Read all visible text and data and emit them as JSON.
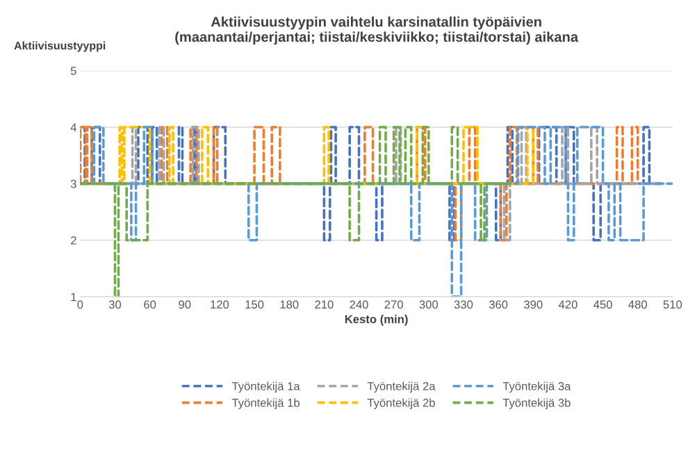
{
  "chart_data": {
    "type": "line",
    "title": "Aktiivisuustyypin vaihtelu karsinatallin työpäivien\n(maanantai/perjantai; tiistai/keskiviikko; tiistai/torstai) aikana",
    "xlabel": "Kesto (min)",
    "ylabel": "Aktiivisuustyyppi",
    "xlim": [
      0,
      510
    ],
    "xticks": [
      0,
      30,
      60,
      90,
      120,
      150,
      180,
      210,
      240,
      270,
      300,
      330,
      360,
      390,
      420,
      450,
      480,
      510
    ],
    "ylim": [
      1,
      5
    ],
    "yticks": [
      1,
      2,
      3,
      4,
      5
    ],
    "grid": "y",
    "legend": "bottom",
    "line_style": "dashed",
    "marker": "none",
    "series": [
      {
        "name": "Työntekijä 1a",
        "color": "#4472c4",
        "x": [
          0,
          0,
          4,
          4,
          10,
          10,
          17,
          17,
          50,
          50,
          58,
          58,
          62,
          62,
          66,
          66,
          85,
          85,
          88,
          88,
          98,
          98,
          100,
          100,
          115,
          115,
          125,
          125,
          210,
          210,
          215,
          215,
          216,
          216,
          220,
          220,
          232,
          232,
          240,
          240,
          255,
          255,
          260,
          260,
          318,
          318,
          322,
          322,
          358,
          358,
          362,
          362,
          368,
          368,
          372,
          372,
          395,
          395,
          410,
          410,
          418,
          418,
          425,
          425,
          442,
          442,
          448,
          448,
          485,
          485,
          490,
          490,
          500
        ],
        "values": [
          3,
          4,
          4,
          3,
          3,
          4,
          4,
          3,
          3,
          4,
          4,
          3,
          3,
          4,
          4,
          3,
          3,
          4,
          4,
          3,
          3,
          4,
          4,
          3,
          3,
          4,
          4,
          3,
          3,
          2,
          2,
          3,
          3,
          4,
          4,
          3,
          3,
          4,
          4,
          3,
          3,
          2,
          2,
          3,
          3,
          2,
          2,
          3,
          3,
          2,
          2,
          3,
          3,
          4,
          4,
          3,
          3,
          4,
          4,
          3,
          3,
          4,
          4,
          3,
          3,
          2,
          2,
          3,
          3,
          4,
          4,
          3,
          3
        ]
      },
      {
        "name": "Työntekijä 1b",
        "color": "#ed7d31",
        "x": [
          0,
          0,
          5,
          5,
          6,
          6,
          10,
          10,
          70,
          70,
          75,
          75,
          95,
          95,
          100,
          100,
          115,
          115,
          118,
          118,
          150,
          150,
          158,
          158,
          165,
          165,
          172,
          172,
          245,
          245,
          252,
          252,
          290,
          290,
          297,
          297,
          323,
          323,
          328,
          328,
          335,
          335,
          340,
          340,
          362,
          362,
          367,
          367,
          370,
          370,
          376,
          376,
          390,
          390,
          394,
          394,
          462,
          462,
          467,
          467,
          475,
          475,
          480,
          480
        ],
        "values": [
          3,
          4,
          4,
          3,
          3,
          4,
          4,
          3,
          3,
          4,
          4,
          3,
          3,
          4,
          4,
          3,
          3,
          4,
          4,
          3,
          3,
          4,
          4,
          3,
          3,
          4,
          4,
          3,
          3,
          4,
          4,
          3,
          3,
          4,
          4,
          3,
          3,
          2,
          2,
          3,
          3,
          4,
          4,
          3,
          3,
          2,
          2,
          3,
          3,
          4,
          4,
          3,
          3,
          4,
          4,
          3,
          3,
          4,
          4,
          3,
          3,
          4,
          4,
          3
        ]
      },
      {
        "name": "Työntekijä 2a",
        "color": "#a5a5a5",
        "x": [
          0,
          45,
          45,
          48,
          48,
          68,
          68,
          72,
          72,
          97,
          97,
          102,
          102,
          272,
          272,
          276,
          276,
          365,
          365,
          370,
          370,
          380,
          380,
          384,
          384,
          415,
          415,
          420,
          420,
          440,
          440,
          445,
          445,
          500
        ],
        "values": [
          3,
          3,
          4,
          4,
          3,
          3,
          4,
          4,
          3,
          3,
          4,
          4,
          3,
          3,
          4,
          4,
          3,
          3,
          2,
          2,
          3,
          3,
          4,
          4,
          3,
          3,
          4,
          4,
          3,
          3,
          4,
          4,
          3,
          3
        ]
      },
      {
        "name": "Työntekijä 2b",
        "color": "#ffc000",
        "x": [
          0,
          34,
          34,
          36,
          36,
          38,
          38,
          60,
          60,
          77,
          77,
          80,
          80,
          105,
          105,
          110,
          110,
          210,
          210,
          214,
          214,
          290,
          290,
          295,
          295,
          330,
          330,
          342,
          342,
          385,
          385,
          390,
          390
        ],
        "values": [
          3,
          3,
          4,
          4,
          3,
          3,
          4,
          4,
          3,
          3,
          4,
          4,
          3,
          3,
          4,
          4,
          3,
          3,
          4,
          4,
          3,
          3,
          4,
          4,
          3,
          3,
          4,
          4,
          3,
          3,
          4,
          4,
          3
        ]
      },
      {
        "name": "Työntekijä 3a",
        "color": "#5b9bd5",
        "x": [
          0,
          12,
          12,
          20,
          20,
          44,
          44,
          48,
          48,
          55,
          55,
          62,
          62,
          145,
          145,
          152,
          152,
          285,
          285,
          292,
          292,
          320,
          320,
          328,
          328,
          340,
          340,
          350,
          350,
          377,
          377,
          400,
          400,
          405,
          405,
          418,
          418,
          420,
          420,
          425,
          425,
          428,
          428,
          450,
          450,
          455,
          455,
          460,
          460,
          465,
          465,
          485,
          485,
          510
        ],
        "values": [
          3,
          3,
          4,
          4,
          3,
          3,
          2,
          2,
          3,
          3,
          4,
          4,
          3,
          3,
          2,
          2,
          3,
          3,
          2,
          2,
          3,
          3,
          1,
          1,
          3,
          3,
          2,
          2,
          3,
          3,
          4,
          4,
          3,
          3,
          4,
          4,
          3,
          3,
          2,
          2,
          3,
          3,
          4,
          4,
          3,
          3,
          2,
          2,
          3,
          3,
          2,
          2,
          3,
          3
        ]
      },
      {
        "name": "Työntekijä 3b",
        "color": "#70ad47",
        "x": [
          0,
          30,
          30,
          33,
          33,
          40,
          40,
          58,
          58,
          232,
          232,
          240,
          240,
          258,
          258,
          263,
          263,
          270,
          270,
          275,
          275,
          280,
          280,
          285,
          285,
          295,
          295,
          300,
          300,
          320,
          320,
          325,
          325,
          345,
          345,
          348,
          348,
          370
        ],
        "values": [
          3,
          3,
          1,
          1,
          3,
          3,
          2,
          2,
          3,
          3,
          2,
          2,
          3,
          3,
          4,
          4,
          3,
          3,
          4,
          4,
          3,
          3,
          4,
          4,
          3,
          3,
          4,
          4,
          3,
          3,
          4,
          4,
          3,
          3,
          2,
          2,
          3,
          3
        ]
      }
    ]
  }
}
